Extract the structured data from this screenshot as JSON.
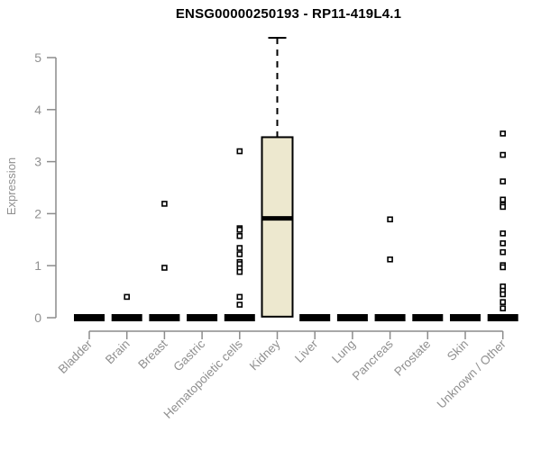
{
  "chart_data": {
    "type": "box",
    "title": "ENSG00000250193 - RP11-419L4.1",
    "ylabel": "Expression",
    "xlabel": "",
    "ylim": [
      0,
      5.4
    ],
    "yticks": [
      0,
      1,
      2,
      3,
      4,
      5
    ],
    "grid": false,
    "legend": null,
    "categories": [
      "Bladder",
      "Brain",
      "Breast",
      "Gastric",
      "Hematopoietic cells",
      "Kidney",
      "Liver",
      "Lung",
      "Pancreas",
      "Prostate",
      "Skin",
      "Unknown / Other"
    ],
    "boxes": [
      {
        "category": "Bladder",
        "low": 0,
        "q1": 0,
        "median": 0,
        "q3": 0,
        "high": 0,
        "outliers": []
      },
      {
        "category": "Brain",
        "low": 0,
        "q1": 0,
        "median": 0,
        "q3": 0,
        "high": 0,
        "outliers": [
          0.4
        ]
      },
      {
        "category": "Breast",
        "low": 0,
        "q1": 0,
        "median": 0,
        "q3": 0,
        "high": 0,
        "outliers": [
          2.19,
          0.96
        ]
      },
      {
        "category": "Gastric",
        "low": 0,
        "q1": 0,
        "median": 0,
        "q3": 0,
        "high": 0,
        "outliers": []
      },
      {
        "category": "Hematopoietic cells",
        "low": 0,
        "q1": 0,
        "median": 0,
        "q3": 0,
        "high": 0,
        "outliers": [
          3.2,
          1.72,
          1.69,
          1.57,
          1.34,
          1.22,
          1.07,
          1.03,
          0.95,
          0.88,
          0.4,
          0.25
        ]
      },
      {
        "category": "Kidney",
        "low": 0,
        "q1": 0.02,
        "median": 1.91,
        "q3": 3.47,
        "high": 5.38,
        "outliers": []
      },
      {
        "category": "Liver",
        "low": 0,
        "q1": 0,
        "median": 0,
        "q3": 0,
        "high": 0,
        "outliers": []
      },
      {
        "category": "Lung",
        "low": 0,
        "q1": 0,
        "median": 0,
        "q3": 0,
        "high": 0,
        "outliers": []
      },
      {
        "category": "Pancreas",
        "low": 0,
        "q1": 0,
        "median": 0,
        "q3": 0,
        "high": 0,
        "outliers": [
          1.89,
          1.12
        ]
      },
      {
        "category": "Prostate",
        "low": 0,
        "q1": 0,
        "median": 0,
        "q3": 0,
        "high": 0,
        "outliers": []
      },
      {
        "category": "Skin",
        "low": 0,
        "q1": 0,
        "median": 0,
        "q3": 0,
        "high": 0,
        "outliers": []
      },
      {
        "category": "Unknown / Other",
        "low": 0,
        "q1": 0,
        "median": 0,
        "q3": 0,
        "high": 0,
        "outliers": [
          3.54,
          3.13,
          2.62,
          2.27,
          2.17,
          2.13,
          1.62,
          1.43,
          1.26,
          1.01,
          0.97,
          0.6,
          0.52,
          0.45,
          0.3,
          0.18
        ]
      }
    ],
    "colors": {
      "box_fill": "#EDE8CF",
      "box_stroke": "#000000",
      "axis": "#8C8C8C",
      "tick_label": "#909090",
      "title": "#000000",
      "background": "#FFFFFF"
    }
  }
}
